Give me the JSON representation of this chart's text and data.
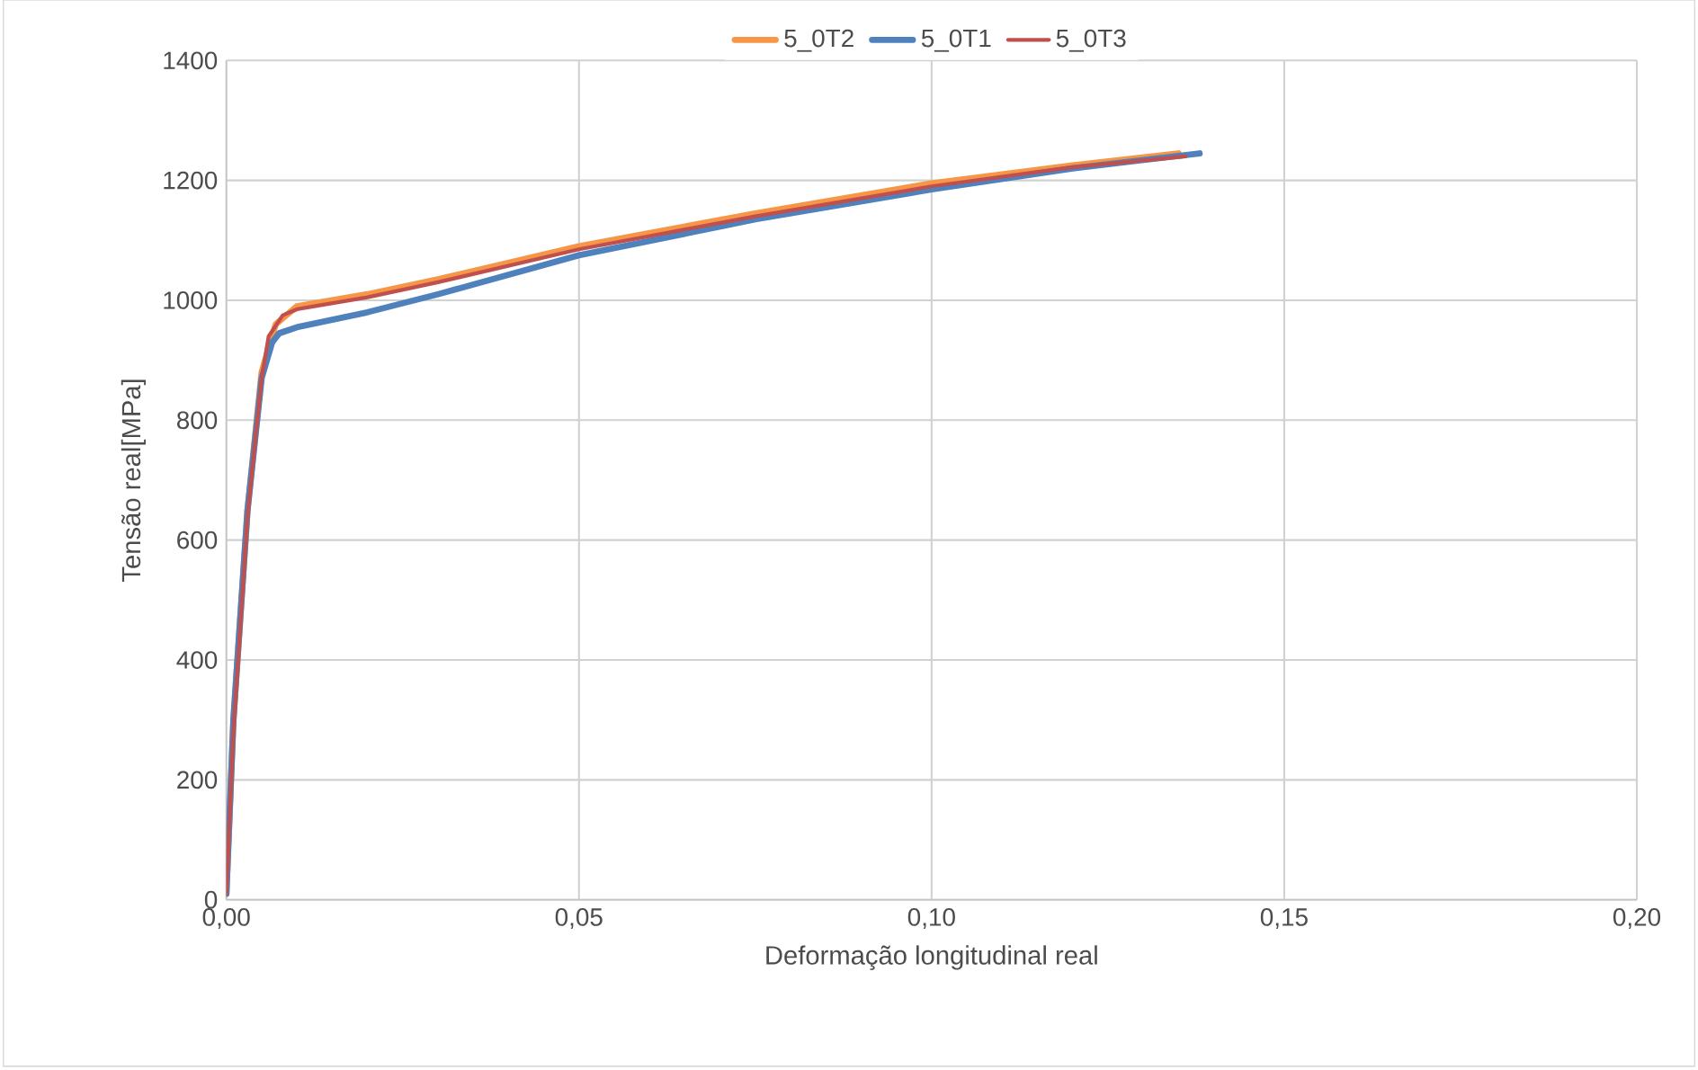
{
  "chart_data": {
    "type": "line",
    "xlabel": "Deformação longitudinal real",
    "ylabel": "Tensão real[MPa]",
    "xlim": [
      0,
      0.2
    ],
    "ylim": [
      0,
      1400
    ],
    "xticks": [
      {
        "value": 0,
        "label": "0,00"
      },
      {
        "value": 0.05,
        "label": "0,05"
      },
      {
        "value": 0.1,
        "label": "0,10"
      },
      {
        "value": 0.15,
        "label": "0,15"
      },
      {
        "value": 0.2,
        "label": "0,20"
      }
    ],
    "yticks": [
      0,
      200,
      400,
      600,
      800,
      1000,
      1200,
      1400
    ],
    "grid": true,
    "legend": "top",
    "marker": "none",
    "line_style": "solid",
    "series": [
      {
        "name": "5_0T2",
        "color": "#f79646",
        "x": [
          0,
          0.001,
          0.003,
          0.005,
          0.007,
          0.01,
          0.02,
          0.03,
          0.05,
          0.075,
          0.1,
          0.12,
          0.135
        ],
        "values": [
          10,
          300,
          650,
          880,
          960,
          990,
          1010,
          1035,
          1090,
          1145,
          1195,
          1225,
          1245
        ]
      },
      {
        "name": "5_0T1",
        "color": "#4f81bd",
        "x": [
          0,
          0.001,
          0.003,
          0.005,
          0.0065,
          0.0075,
          0.01,
          0.02,
          0.03,
          0.05,
          0.075,
          0.1,
          0.12,
          0.138
        ],
        "values": [
          10,
          300,
          650,
          870,
          930,
          945,
          955,
          980,
          1010,
          1075,
          1135,
          1185,
          1220,
          1245
        ]
      },
      {
        "name": "5_0T3",
        "color": "#c0504d",
        "x": [
          0,
          0.001,
          0.003,
          0.005,
          0.006,
          0.008,
          0.01,
          0.02,
          0.03,
          0.05,
          0.075,
          0.1,
          0.12,
          0.136
        ],
        "values": [
          10,
          280,
          640,
          870,
          940,
          975,
          985,
          1005,
          1030,
          1085,
          1140,
          1190,
          1222,
          1240
        ]
      }
    ]
  }
}
